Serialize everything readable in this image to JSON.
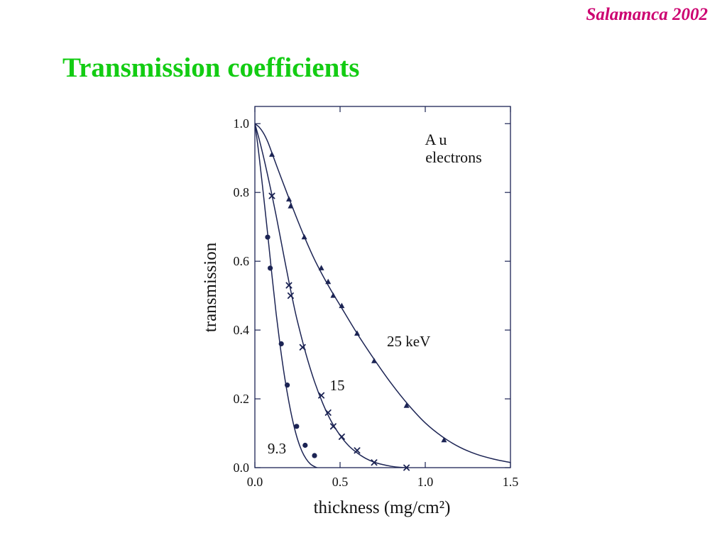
{
  "header": {
    "venue": "Salamanca 2002"
  },
  "slide": {
    "title": "Transmission coefficients"
  },
  "colors": {
    "title": "#13cc13",
    "venue": "#cc0070",
    "ink": "#1c2454",
    "text": "#111111",
    "background": "#ffffff"
  },
  "chart_data": {
    "type": "scatter",
    "title": "",
    "xlabel": "thickness (mg/cm²)",
    "ylabel": "transmission",
    "xlim": [
      0,
      1.5
    ],
    "ylim": [
      0,
      1.05
    ],
    "xticks": [
      0,
      0.5,
      1.0,
      1.5
    ],
    "xtick_labels": [
      "0.0",
      "0.5",
      "1.0",
      "1.5"
    ],
    "yticks": [
      0,
      0.2,
      0.4,
      0.6,
      0.8,
      1.0
    ],
    "ytick_labels": [
      "0.0",
      "0.2",
      "0.4",
      "0.6",
      "0.8",
      "1.0"
    ],
    "grid": false,
    "annotations": [
      "Au",
      "electrons"
    ],
    "series": [
      {
        "name": "25 keV",
        "marker": "triangle",
        "points": {
          "x": [
            0.1,
            0.2,
            0.21,
            0.29,
            0.39,
            0.43,
            0.46,
            0.51,
            0.6,
            0.7,
            0.89,
            1.11
          ],
          "y": [
            0.91,
            0.78,
            0.76,
            0.67,
            0.58,
            0.54,
            0.5,
            0.47,
            0.39,
            0.31,
            0.18,
            0.08
          ]
        },
        "curve": {
          "x": [
            0,
            0.025,
            0.05,
            0.075,
            0.1,
            0.15,
            0.2,
            0.25,
            0.3,
            0.35,
            0.4,
            0.45,
            0.5,
            0.6,
            0.7,
            0.8,
            0.9,
            1.0,
            1.1,
            1.2,
            1.3,
            1.4,
            1.5
          ],
          "y": [
            1.0,
            0.99,
            0.973,
            0.948,
            0.915,
            0.848,
            0.783,
            0.72,
            0.66,
            0.605,
            0.557,
            0.513,
            0.472,
            0.39,
            0.315,
            0.245,
            0.183,
            0.13,
            0.09,
            0.06,
            0.039,
            0.025,
            0.015
          ]
        }
      },
      {
        "name": "15",
        "marker": "cross",
        "points": {
          "x": [
            0.1,
            0.2,
            0.21,
            0.28,
            0.39,
            0.43,
            0.46,
            0.51,
            0.6,
            0.7,
            0.89
          ],
          "y": [
            0.79,
            0.53,
            0.5,
            0.35,
            0.21,
            0.16,
            0.12,
            0.09,
            0.05,
            0.015,
            0.0
          ]
        },
        "curve": {
          "x": [
            0,
            0.025,
            0.05,
            0.075,
            0.1,
            0.125,
            0.15,
            0.175,
            0.2,
            0.225,
            0.25,
            0.3,
            0.35,
            0.4,
            0.45,
            0.5,
            0.55,
            0.6,
            0.65,
            0.7,
            0.75,
            0.8,
            0.85,
            0.9
          ],
          "y": [
            1.0,
            0.955,
            0.905,
            0.85,
            0.793,
            0.732,
            0.668,
            0.603,
            0.54,
            0.48,
            0.425,
            0.33,
            0.25,
            0.185,
            0.133,
            0.094,
            0.064,
            0.043,
            0.027,
            0.016,
            0.009,
            0.004,
            0.001,
            0.0
          ]
        }
      },
      {
        "name": "9.3",
        "marker": "circle",
        "points": {
          "x": [
            0.075,
            0.09,
            0.155,
            0.19,
            0.245,
            0.295,
            0.35
          ],
          "y": [
            0.67,
            0.58,
            0.36,
            0.24,
            0.12,
            0.065,
            0.035
          ]
        },
        "curve": {
          "x": [
            0,
            0.0125,
            0.025,
            0.05,
            0.075,
            0.1,
            0.125,
            0.15,
            0.175,
            0.2,
            0.225,
            0.25,
            0.275,
            0.3,
            0.325,
            0.35,
            0.365
          ],
          "y": [
            1.0,
            0.955,
            0.905,
            0.795,
            0.68,
            0.56,
            0.447,
            0.348,
            0.262,
            0.19,
            0.13,
            0.083,
            0.049,
            0.026,
            0.011,
            0.003,
            0.0
          ]
        }
      }
    ]
  }
}
